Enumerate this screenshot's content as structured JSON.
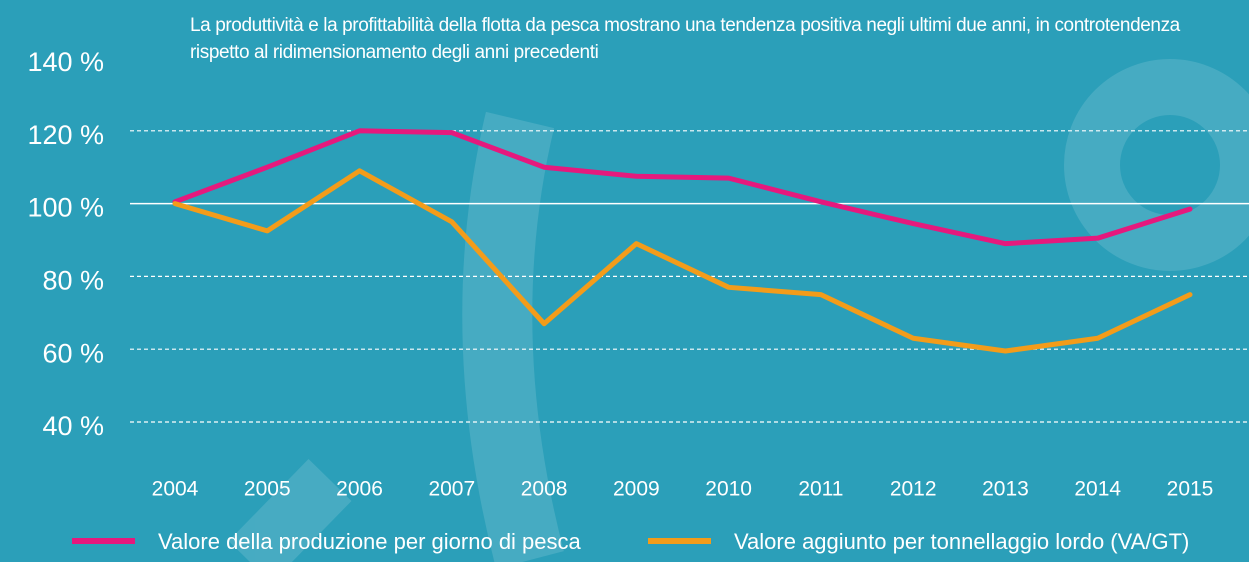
{
  "chart_data": {
    "type": "line",
    "title": "La produttività e la profittabilità della flotta da pesca mostrano una tendenza positiva negli ultimi due anni, in controtendenza rispetto al ridimensionamento degli anni precedenti",
    "categories": [
      "2004",
      "2005",
      "2006",
      "2007",
      "2008",
      "2009",
      "2010",
      "2011",
      "2012",
      "2013",
      "2014",
      "2015"
    ],
    "series": [
      {
        "name": "Valore della produzione per giorno di pesca",
        "color": "#e5197d",
        "values": [
          100.5,
          110,
          120,
          119.5,
          110,
          107.5,
          107,
          100.5,
          94.5,
          89,
          90.5,
          98.5
        ]
      },
      {
        "name": "Valore aggiunto per tonnellaggio lordo (VA/GT)",
        "color": "#f39c1a",
        "values": [
          100,
          92.5,
          109,
          95,
          67,
          89,
          77,
          75,
          63,
          59.5,
          63,
          75
        ]
      }
    ],
    "ylim": [
      40,
      140
    ],
    "yticks": [
      {
        "value": 40,
        "label": "40 %"
      },
      {
        "value": 60,
        "label": "60 %"
      },
      {
        "value": 80,
        "label": "80 %"
      },
      {
        "value": 100,
        "label": "100 %"
      },
      {
        "value": 120,
        "label": "120 %"
      },
      {
        "value": 140,
        "label": "140 %"
      }
    ],
    "grid": true,
    "baseline": 100,
    "legend": "bottom"
  }
}
